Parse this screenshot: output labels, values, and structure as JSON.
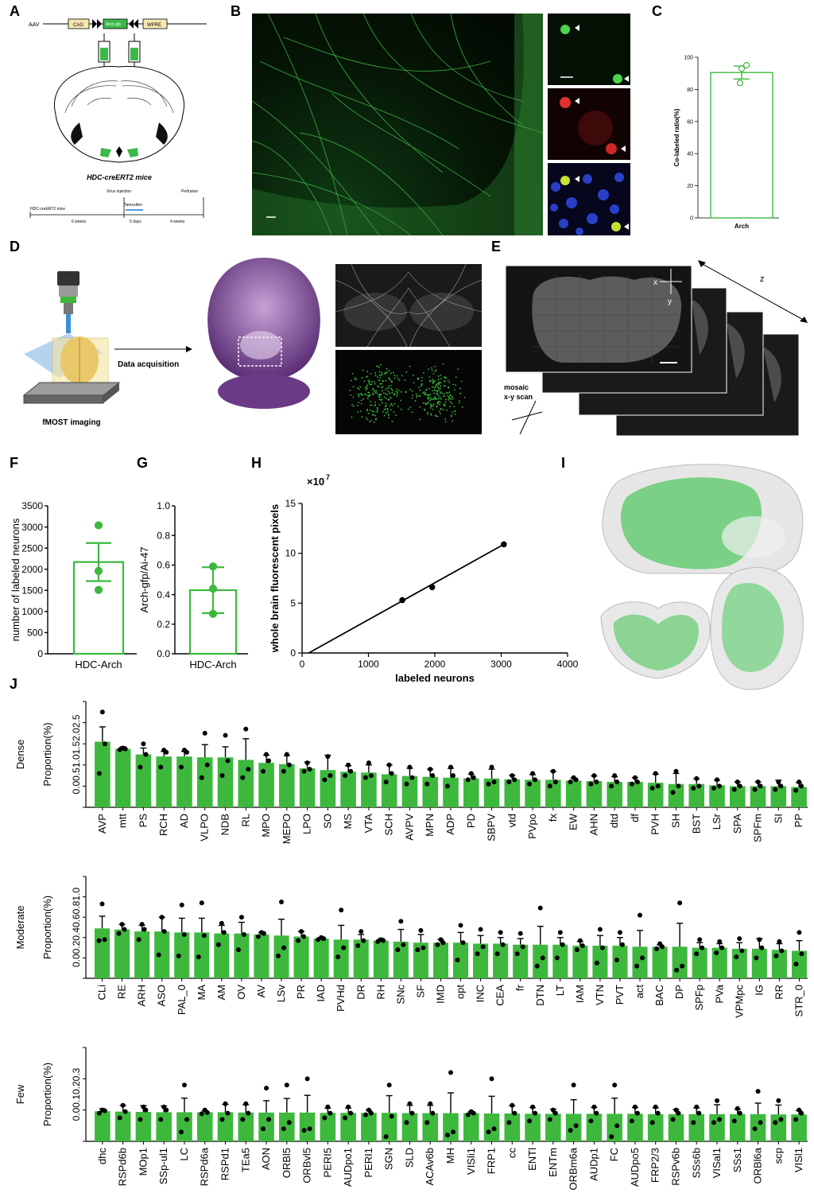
{
  "panels": {
    "labels": [
      "A",
      "B",
      "C",
      "D",
      "E",
      "F",
      "G",
      "H",
      "I",
      "J"
    ]
  },
  "panel_a": {
    "aav_label": "AAV",
    "cag_label": "CAG",
    "construct_label": "Arch-gfp",
    "wpre_label": "WPRE",
    "mouse_label": "HDC-creERT2 mice",
    "timeline": {
      "start": "HDC-creERT2 mice",
      "virus": "Virus injection",
      "tamoxifen": "Tamoxifen",
      "perfusion": "Perfusion",
      "weeks6": "6 weeks",
      "days5": "5 days",
      "weeks4": "4 weeks"
    }
  },
  "panel_d": {
    "imaging_label": "fMOST imaging",
    "arrow_label": "Data acquisition"
  },
  "panel_e": {
    "x": "x",
    "y": "y",
    "z": "z",
    "mosaic1": "mosaic",
    "mosaic2": "x-y scan"
  },
  "colors": {
    "bar": "#3db83d",
    "bar_outline": "#3db83d",
    "point": "#000000",
    "green_point": "#3db83d",
    "micro_green": "#38c23b"
  },
  "chart_data": [
    {
      "id": "C",
      "type": "bar",
      "categories": [
        "Arch"
      ],
      "values": [
        90.5
      ],
      "error": [
        4
      ],
      "points": [
        [
          95,
          93,
          84
        ]
      ],
      "ylabel": "Co-labeled ratio(%)",
      "ylim": [
        0,
        100
      ],
      "yticks": [
        0,
        20,
        40,
        60,
        80,
        100
      ]
    },
    {
      "id": "F",
      "type": "bar",
      "categories": [
        "HDC-Arch"
      ],
      "values": [
        2170
      ],
      "error": [
        450
      ],
      "points": [
        [
          3040,
          1960,
          1510
        ]
      ],
      "ylabel": "number of labeled neurons",
      "ylim": [
        0,
        3500
      ],
      "yticks": [
        0,
        500,
        1000,
        1500,
        2000,
        2500,
        3000,
        3500
      ]
    },
    {
      "id": "G",
      "type": "bar",
      "categories": [
        "HDC-Arch"
      ],
      "values": [
        0.43
      ],
      "error": [
        0.155
      ],
      "points": [
        [
          0.59,
          0.44,
          0.27
        ]
      ],
      "ylabel": "Arch-gfp/Ai-47",
      "ylim": [
        0,
        1.0
      ],
      "yticks": [
        "0.0",
        "0.2",
        "0.4",
        "0.6",
        "0.8",
        "1.0"
      ]
    },
    {
      "id": "H",
      "type": "scatter",
      "x": [
        1510,
        1960,
        3040
      ],
      "y": [
        5.3,
        6.6,
        10.9
      ],
      "fit": [
        [
          100,
          0
        ],
        [
          3040,
          10.9
        ]
      ],
      "xlabel": "labeled neurons",
      "ylabel": "whole brain fluorescent pixels",
      "multiplier": "×10",
      "exponent": "7",
      "xlim": [
        0,
        4000
      ],
      "ylim": [
        0,
        15
      ],
      "xticks": [
        0,
        1000,
        2000,
        3000,
        4000
      ],
      "yticks": [
        0,
        5,
        10,
        15
      ]
    },
    {
      "id": "J-Dense",
      "type": "bar",
      "row_label": "Dense",
      "ylabel": "Proportion(%)",
      "ylim": [
        0,
        2.5
      ],
      "yticks": [
        "0.0",
        "0.5",
        "1.0",
        "1.5",
        "2.0",
        "2.5"
      ],
      "categories": [
        "AVP",
        "mtt",
        "PS",
        "RCH",
        "AD",
        "VLPO",
        "NDB",
        "RL",
        "MPO",
        "MEPO",
        "LPO",
        "SO",
        "MS",
        "VTA",
        "SCH",
        "AVPV",
        "MPN",
        "ADP",
        "PD",
        "SBPV",
        "vtd",
        "PVpo",
        "fx",
        "EW",
        "AHN",
        "dtd",
        "df",
        "PVH",
        "SH",
        "BST",
        "LSr",
        "SPA",
        "SPFm",
        "SI",
        "PP"
      ],
      "values": [
        1.55,
        1.38,
        1.25,
        1.2,
        1.2,
        1.18,
        1.18,
        1.12,
        1.05,
        1.02,
        0.92,
        0.88,
        0.84,
        0.82,
        0.78,
        0.74,
        0.72,
        0.7,
        0.68,
        0.68,
        0.66,
        0.65,
        0.65,
        0.63,
        0.62,
        0.6,
        0.6,
        0.58,
        0.55,
        0.55,
        0.52,
        0.5,
        0.5,
        0.5,
        0.48
      ],
      "error": [
        0.35,
        0.05,
        0.15,
        0.12,
        0.12,
        0.3,
        0.25,
        0.5,
        0.18,
        0.2,
        0.15,
        0.35,
        0.14,
        0.18,
        0.22,
        0.18,
        0.18,
        0.22,
        0.1,
        0.22,
        0.1,
        0.12,
        0.2,
        0.06,
        0.12,
        0.12,
        0.1,
        0.2,
        0.25,
        0.12,
        0.12,
        0.1,
        0.1,
        0.14,
        0.1
      ],
      "points": [
        [
          2.25,
          1.5,
          0.8
        ],
        [
          1.4,
          1.38,
          1.36
        ],
        [
          1.5,
          1.25,
          0.95
        ],
        [
          1.35,
          1.3,
          0.95
        ],
        [
          1.35,
          1.3,
          0.95
        ],
        [
          1.75,
          1.0,
          0.7
        ],
        [
          1.7,
          1.1,
          0.75
        ],
        [
          1.85,
          0.9,
          0.7
        ],
        [
          1.25,
          1.1,
          0.85
        ],
        [
          1.25,
          1.0,
          0.85
        ],
        [
          1.05,
          0.9,
          0.85
        ],
        [
          1.2,
          0.75,
          0.65
        ],
        [
          1.0,
          0.85,
          0.75
        ],
        [
          1.05,
          0.75,
          0.7
        ],
        [
          1.0,
          0.8,
          0.6
        ],
        [
          0.95,
          0.7,
          0.55
        ],
        [
          0.9,
          0.75,
          0.55
        ],
        [
          0.95,
          0.75,
          0.5
        ],
        [
          0.8,
          0.7,
          0.65
        ],
        [
          0.95,
          0.6,
          0.55
        ],
        [
          0.75,
          0.65,
          0.6
        ],
        [
          0.8,
          0.65,
          0.55
        ],
        [
          0.85,
          0.6,
          0.5
        ],
        [
          0.7,
          0.65,
          0.6
        ],
        [
          0.75,
          0.6,
          0.55
        ],
        [
          0.75,
          0.6,
          0.5
        ],
        [
          0.7,
          0.6,
          0.55
        ],
        [
          0.8,
          0.5,
          0.45
        ],
        [
          0.85,
          0.5,
          0.35
        ],
        [
          0.68,
          0.5,
          0.45
        ],
        [
          0.65,
          0.5,
          0.45
        ],
        [
          0.6,
          0.5,
          0.42
        ],
        [
          0.6,
          0.5,
          0.42
        ],
        [
          0.6,
          0.5,
          0.42
        ],
        [
          0.6,
          0.5,
          0.4
        ]
      ]
    },
    {
      "id": "J-Moderate",
      "type": "bar",
      "row_label": "Moderate",
      "ylabel": "Proportion(%)",
      "ylim": [
        0,
        1.0
      ],
      "yticks": [
        "0.0",
        "0.2",
        "0.4",
        "0.6",
        "0.8",
        "1.0"
      ],
      "categories": [
        "CLi",
        "RE",
        "ARH",
        "ASO",
        "PAL_0",
        "MA",
        "AM",
        "OV",
        "AV",
        "LSv",
        "PR",
        "IAD",
        "PVHd",
        "DR",
        "RH",
        "SNc",
        "SF",
        "IMD",
        "opt",
        "INC",
        "CEA",
        "fr",
        "DTN",
        "LT",
        "IAM",
        "VTN",
        "PVT",
        "act",
        "BAC",
        "DP",
        "SPFp",
        "PVa",
        "VPMpc",
        "IG",
        "RR",
        "STR_0"
      ],
      "values": [
        0.49,
        0.48,
        0.46,
        0.46,
        0.45,
        0.45,
        0.44,
        0.44,
        0.43,
        0.42,
        0.41,
        0.39,
        0.38,
        0.38,
        0.37,
        0.36,
        0.35,
        0.35,
        0.35,
        0.34,
        0.34,
        0.33,
        0.33,
        0.33,
        0.32,
        0.32,
        0.32,
        0.31,
        0.31,
        0.31,
        0.3,
        0.3,
        0.29,
        0.29,
        0.28,
        0.27
      ],
      "error": [
        0.12,
        0.05,
        0.06,
        0.14,
        0.14,
        0.14,
        0.08,
        0.11,
        0.02,
        0.16,
        0.05,
        0.01,
        0.14,
        0.05,
        0.02,
        0.12,
        0.08,
        0.03,
        0.1,
        0.08,
        0.06,
        0.06,
        0.18,
        0.07,
        0.04,
        0.1,
        0.08,
        0.16,
        0.02,
        0.23,
        0.05,
        0.04,
        0.06,
        0.1,
        0.06,
        0.1
      ],
      "points": [
        [
          0.73,
          0.38,
          0.37
        ],
        [
          0.53,
          0.48,
          0.44
        ],
        [
          0.53,
          0.48,
          0.38
        ],
        [
          0.6,
          0.46,
          0.23
        ],
        [
          0.72,
          0.43,
          0.22
        ],
        [
          0.74,
          0.42,
          0.21
        ],
        [
          0.54,
          0.45,
          0.33
        ],
        [
          0.6,
          0.43,
          0.28
        ],
        [
          0.45,
          0.44,
          0.41
        ],
        [
          0.75,
          0.3,
          0.22
        ],
        [
          0.46,
          0.41,
          0.37
        ],
        [
          0.4,
          0.39,
          0.38
        ],
        [
          0.67,
          0.3,
          0.21
        ],
        [
          0.46,
          0.37,
          0.32
        ],
        [
          0.38,
          0.37,
          0.36
        ],
        [
          0.56,
          0.33,
          0.28
        ],
        [
          0.47,
          0.3,
          0.28
        ],
        [
          0.38,
          0.35,
          0.33
        ],
        [
          0.52,
          0.35,
          0.18
        ],
        [
          0.48,
          0.31,
          0.24
        ],
        [
          0.45,
          0.33,
          0.24
        ],
        [
          0.44,
          0.31,
          0.24
        ],
        [
          0.69,
          0.2,
          0.12
        ],
        [
          0.45,
          0.33,
          0.2
        ],
        [
          0.37,
          0.32,
          0.28
        ],
        [
          0.48,
          0.3,
          0.15
        ],
        [
          0.45,
          0.33,
          0.18
        ],
        [
          0.62,
          0.2,
          0.12
        ],
        [
          0.34,
          0.31,
          0.29
        ],
        [
          0.74,
          0.12,
          0.08
        ],
        [
          0.38,
          0.3,
          0.24
        ],
        [
          0.36,
          0.3,
          0.25
        ],
        [
          0.39,
          0.27,
          0.21
        ],
        [
          0.38,
          0.3,
          0.2
        ],
        [
          0.36,
          0.27,
          0.22
        ],
        [
          0.45,
          0.24,
          0.14
        ]
      ]
    },
    {
      "id": "J-Few",
      "type": "bar",
      "row_label": "Few",
      "ylabel": "Proportion(%)",
      "ylim": [
        0,
        0.3
      ],
      "yticks": [
        "0.0",
        "0.1",
        "0.2",
        "0.3"
      ],
      "categories": [
        "dhc",
        "RSPd6b",
        "MOp1",
        "SSp-ul1",
        "LC",
        "RSPd6a",
        "RSPd1",
        "TEa5",
        "AON",
        "ORBl5",
        "ORBvl5",
        "PERI5",
        "AUDpo1",
        "PERI1",
        "SGN",
        "SLD",
        "ACAv6b",
        "MH",
        "VISli1",
        "FRP1",
        "cc",
        "ENTl",
        "ENTm",
        "ORBm6a",
        "AUDp1",
        "FC",
        "AUDpo5",
        "FRP2/3",
        "RSPv6b",
        "SSs6b",
        "VISal1",
        "SSs1",
        "ORBl6a",
        "scp",
        "VISl1"
      ],
      "values": [
        0.096,
        0.095,
        0.094,
        0.093,
        0.093,
        0.093,
        0.093,
        0.092,
        0.092,
        0.092,
        0.092,
        0.091,
        0.091,
        0.091,
        0.091,
        0.09,
        0.09,
        0.09,
        0.09,
        0.089,
        0.089,
        0.088,
        0.088,
        0.088,
        0.088,
        0.088,
        0.088,
        0.087,
        0.087,
        0.087,
        0.087,
        0.087,
        0.087,
        0.086,
        0.086
      ],
      "error": [
        0.008,
        0.02,
        0.02,
        0.02,
        0.045,
        0.005,
        0.025,
        0.025,
        0.038,
        0.045,
        0.055,
        0.015,
        0.015,
        0.008,
        0.055,
        0.025,
        0.025,
        0.065,
        0.005,
        0.055,
        0.025,
        0.02,
        0.015,
        0.045,
        0.02,
        0.05,
        0.02,
        0.02,
        0.015,
        0.02,
        0.03,
        0.015,
        0.035,
        0.03,
        0.012
      ],
      "points": [
        [
          0.1,
          0.098,
          0.09
        ],
        [
          0.115,
          0.095,
          0.075
        ],
        [
          0.11,
          0.1,
          0.07
        ],
        [
          0.11,
          0.1,
          0.07
        ],
        [
          0.18,
          0.07,
          0.03
        ],
        [
          0.1,
          0.092,
          0.088
        ],
        [
          0.12,
          0.09,
          0.07
        ],
        [
          0.12,
          0.09,
          0.07
        ],
        [
          0.17,
          0.07,
          0.04
        ],
        [
          0.18,
          0.06,
          0.04
        ],
        [
          0.2,
          0.04,
          0.035
        ],
        [
          0.11,
          0.09,
          0.075
        ],
        [
          0.11,
          0.09,
          0.075
        ],
        [
          0.1,
          0.09,
          0.085
        ],
        [
          0.18,
          0.08,
          0.015
        ],
        [
          0.12,
          0.09,
          0.06
        ],
        [
          0.12,
          0.09,
          0.06
        ],
        [
          0.22,
          0.03,
          0.02
        ],
        [
          0.095,
          0.09,
          0.085
        ],
        [
          0.2,
          0.04,
          0.03
        ],
        [
          0.115,
          0.09,
          0.06
        ],
        [
          0.11,
          0.09,
          0.065
        ],
        [
          0.1,
          0.09,
          0.07
        ],
        [
          0.18,
          0.05,
          0.035
        ],
        [
          0.11,
          0.09,
          0.065
        ],
        [
          0.18,
          0.05,
          0.015
        ],
        [
          0.11,
          0.09,
          0.065
        ],
        [
          0.11,
          0.09,
          0.06
        ],
        [
          0.1,
          0.09,
          0.07
        ],
        [
          0.11,
          0.09,
          0.06
        ],
        [
          0.13,
          0.07,
          0.06
        ],
        [
          0.105,
          0.09,
          0.065
        ],
        [
          0.16,
          0.06,
          0.04
        ],
        [
          0.13,
          0.07,
          0.06
        ],
        [
          0.1,
          0.09,
          0.07
        ]
      ]
    }
  ]
}
